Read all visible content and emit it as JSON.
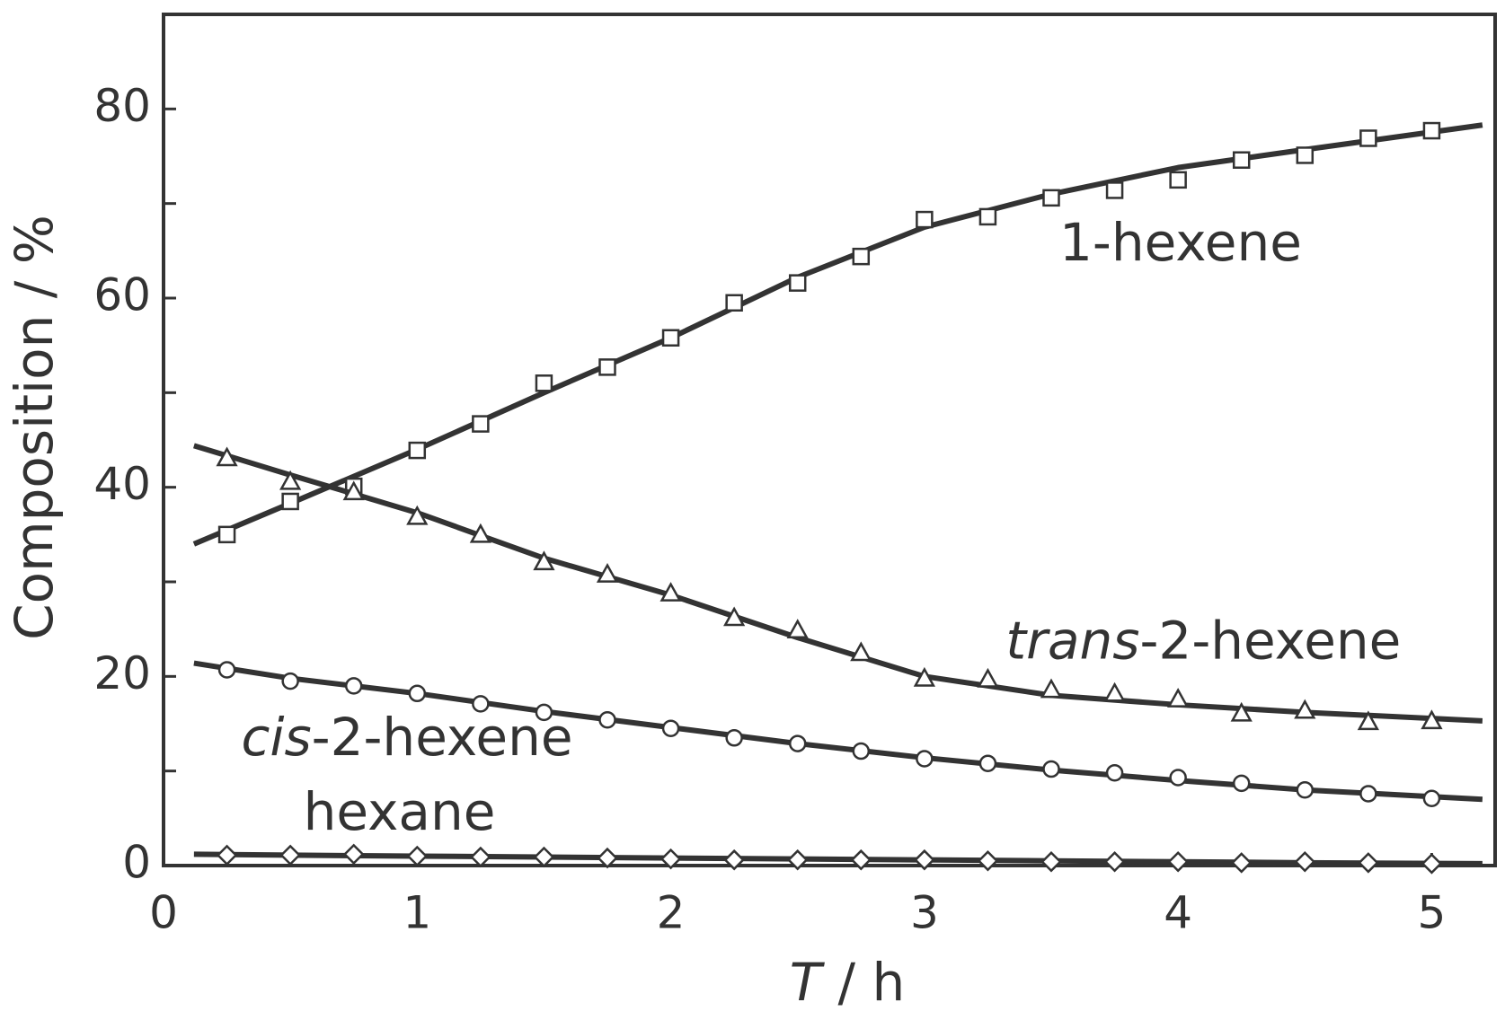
{
  "chart_data": {
    "type": "line",
    "ylabel": "Composition / %",
    "xlabel_parts": [
      {
        "text": "T",
        "italic": true
      },
      {
        "text": " / h",
        "italic": false
      }
    ],
    "xlim": [
      0,
      5.25
    ],
    "ylim": [
      0,
      90
    ],
    "xticks": [
      0,
      1,
      2,
      3,
      4,
      5
    ],
    "yticks": [
      0,
      20,
      40,
      60,
      80
    ],
    "yminor_ticks": [
      10,
      30,
      50,
      70
    ],
    "x": [
      0.25,
      0.5,
      0.75,
      1,
      1.25,
      1.5,
      1.75,
      2,
      2.25,
      2.5,
      2.75,
      3,
      3.25,
      3.5,
      3.75,
      4,
      4.25,
      4.5,
      4.75,
      5
    ],
    "fit_x": [
      0.12,
      0.5,
      1,
      1.5,
      2,
      2.5,
      3,
      3.5,
      4,
      4.5,
      5.2
    ],
    "series": [
      {
        "name_parts": [
          {
            "text": "1-hexene",
            "italic": false
          }
        ],
        "marker": "square",
        "color": "#333333",
        "values": [
          35.0,
          38.5,
          40.1,
          43.9,
          46.7,
          51.0,
          52.7,
          55.8,
          59.5,
          61.6,
          64.4,
          68.3,
          68.6,
          70.6,
          71.4,
          72.5,
          74.6,
          75.1,
          76.9,
          77.7
        ],
        "fit": [
          34.0,
          38.3,
          44.0,
          50.0,
          55.8,
          62.2,
          67.5,
          71.0,
          73.8,
          75.7,
          78.3
        ]
      },
      {
        "name_parts": [
          {
            "text": "trans",
            "italic": true
          },
          {
            "text": "-2-hexene",
            "italic": false
          }
        ],
        "marker": "triangle",
        "color": "#333333",
        "values": [
          43.1,
          40.6,
          39.5,
          36.9,
          35.0,
          32.1,
          30.8,
          28.8,
          26.2,
          24.9,
          22.5,
          19.8,
          19.7,
          18.6,
          18.2,
          17.6,
          16.1,
          16.4,
          15.2,
          15.3
        ],
        "fit": [
          44.4,
          41.3,
          37.3,
          32.5,
          28.6,
          24.1,
          20.0,
          18.0,
          17.0,
          16.2,
          15.3
        ]
      },
      {
        "name_parts": [
          {
            "text": "cis",
            "italic": true
          },
          {
            "text": "-2-hexene",
            "italic": false
          }
        ],
        "marker": "circle",
        "color": "#333333",
        "values": [
          20.7,
          19.5,
          19.0,
          18.2,
          17.1,
          16.2,
          15.4,
          14.5,
          13.5,
          12.9,
          12.1,
          11.3,
          10.8,
          10.2,
          9.8,
          9.3,
          8.7,
          8.0,
          7.6,
          7.1
        ],
        "fit": [
          21.4,
          19.8,
          18.2,
          16.3,
          14.6,
          12.9,
          11.4,
          10.1,
          9.0,
          8.0,
          7.0
        ]
      },
      {
        "name_parts": [
          {
            "text": "hexane",
            "italic": false
          }
        ],
        "marker": "diamond",
        "color": "#333333",
        "values": [
          1.1,
          1.1,
          1.2,
          1.0,
          0.9,
          0.9,
          0.8,
          0.7,
          0.6,
          0.6,
          0.6,
          0.6,
          0.5,
          0.4,
          0.4,
          0.4,
          0.3,
          0.4,
          0.3,
          0.2
        ],
        "fit": [
          1.2,
          1.1,
          1.0,
          0.9,
          0.8,
          0.7,
          0.6,
          0.5,
          0.4,
          0.3,
          0.2
        ]
      }
    ]
  }
}
